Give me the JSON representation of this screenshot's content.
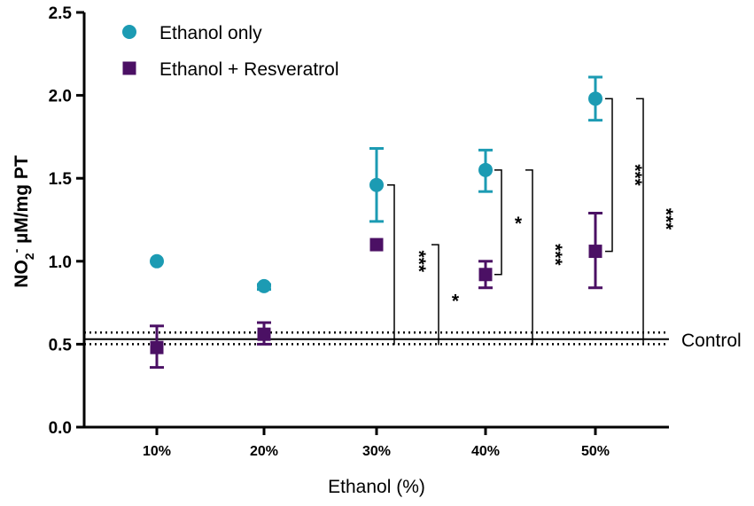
{
  "chart_data": {
    "type": "scatter",
    "title": "",
    "xlabel": "Ethanol (%)",
    "ylabel": {
      "main": "NO",
      "sub": "2",
      "sup": "-",
      "rest": " µM/mg PT"
    },
    "categories": [
      "10%",
      "20%",
      "30%",
      "40%",
      "50%"
    ],
    "ylim": [
      0,
      2.5
    ],
    "yticks": [
      "0.0",
      "0.5",
      "1.0",
      "1.5",
      "2.0",
      "2.5"
    ],
    "grid": false,
    "legend_position": "top-left",
    "series": [
      {
        "name": "Ethanol only",
        "marker": "circle",
        "color": "#1c9bb3",
        "values": [
          1.0,
          0.85,
          1.46,
          1.55,
          1.98
        ],
        "err_low": [
          null,
          0.83,
          1.24,
          1.42,
          1.85
        ],
        "err_high": [
          null,
          0.86,
          1.68,
          1.67,
          2.11
        ]
      },
      {
        "name": "Ethanol + Resveratrol",
        "marker": "square",
        "color": "#4b1064",
        "values": [
          0.48,
          0.56,
          1.1,
          0.92,
          1.06
        ],
        "err_low": [
          0.36,
          0.5,
          null,
          0.84,
          0.84
        ],
        "err_high": [
          0.61,
          0.63,
          null,
          1.0,
          1.29
        ]
      }
    ],
    "control": {
      "label": "Control",
      "mean": 0.53,
      "lower": 0.5,
      "upper": 0.57
    },
    "significance": [
      {
        "cat": 2,
        "from": 1.46,
        "to": 0.53,
        "label": "***",
        "kind": "vs-control"
      },
      {
        "cat": 2,
        "from": 1.1,
        "to": 0.53,
        "label": "*",
        "kind": "vs-control"
      },
      {
        "cat": 3,
        "from": 1.55,
        "to": 0.92,
        "label": "*",
        "kind": "between"
      },
      {
        "cat": 3,
        "from": 1.55,
        "to": 0.53,
        "label": "***",
        "kind": "vs-control"
      },
      {
        "cat": 4,
        "from": 1.98,
        "to": 1.06,
        "label": "***",
        "kind": "between"
      },
      {
        "cat": 4,
        "from": 1.98,
        "to": 0.53,
        "label": "***",
        "kind": "vs-control"
      }
    ]
  }
}
